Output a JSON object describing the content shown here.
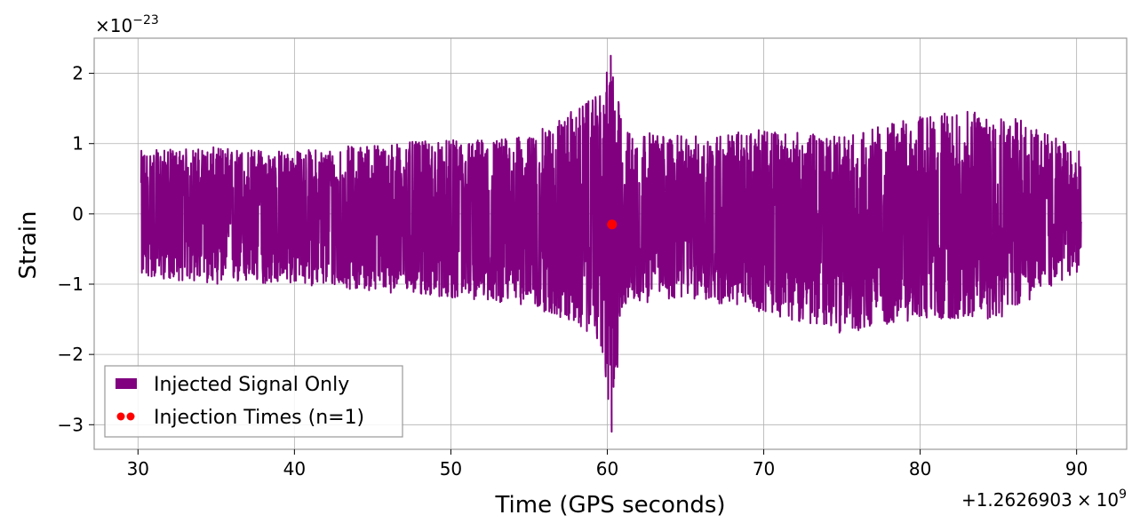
{
  "chart_data": {
    "type": "line",
    "xlabel": "Time (GPS seconds)",
    "ylabel": "Strain",
    "x_offset_label": {
      "prefix": "+1.2626903",
      "times": "×",
      "base": "10",
      "exp": "9"
    },
    "y_scale_label": {
      "times": "×",
      "base": "10",
      "exp": "−23"
    },
    "xlim": [
      27.2,
      93.2
    ],
    "ylim": [
      -3.35,
      2.5
    ],
    "x_ticks": [
      {
        "value": 30,
        "label": "30"
      },
      {
        "value": 40,
        "label": "40"
      },
      {
        "value": 50,
        "label": "50"
      },
      {
        "value": 60,
        "label": "60"
      },
      {
        "value": 70,
        "label": "70"
      },
      {
        "value": 80,
        "label": "80"
      },
      {
        "value": 90,
        "label": "90"
      }
    ],
    "y_ticks": [
      {
        "value": 2,
        "label": "2"
      },
      {
        "value": 1,
        "label": "1"
      },
      {
        "value": 0,
        "label": "0"
      },
      {
        "value": -1,
        "label": "−1"
      },
      {
        "value": -2,
        "label": "−2"
      },
      {
        "value": -3,
        "label": "−3"
      }
    ],
    "grid": true,
    "legend_position": "lower-left",
    "series": [
      {
        "name": "Injected Signal Only",
        "kind": "line",
        "color": "#800080",
        "x_range": [
          30.2,
          90.3
        ],
        "envelope": {
          "times": [
            30.2,
            35,
            40,
            45,
            50,
            55,
            58,
            59.5,
            60.3,
            61,
            65,
            70,
            75,
            80,
            85,
            90.3
          ],
          "upper": [
            0.9,
            0.95,
            0.9,
            1.0,
            1.05,
            1.1,
            1.5,
            1.7,
            2.25,
            1.2,
            1.1,
            1.2,
            1.1,
            1.4,
            1.5,
            0.9
          ],
          "lower": [
            -0.9,
            -1.0,
            -1.0,
            -1.1,
            -1.2,
            -1.3,
            -1.6,
            -1.8,
            -3.1,
            -1.3,
            -1.2,
            -1.4,
            -1.7,
            -1.5,
            -1.5,
            -0.8
          ]
        }
      },
      {
        "name": "Injection Times (n=1)",
        "kind": "scatter",
        "color": "#ff0000",
        "points": [
          {
            "x": 60.3,
            "y": -0.15
          }
        ]
      }
    ]
  }
}
